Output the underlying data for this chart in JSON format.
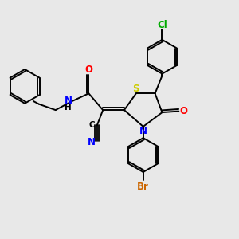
{
  "background_color": "#e8e8e8",
  "atom_colors": {
    "S": "#cccc00",
    "N": "#0000ff",
    "O": "#ff0000",
    "Cl": "#00aa00",
    "Br": "#cc6600",
    "C": "#000000",
    "H": "#555555"
  },
  "figsize": [
    3.0,
    3.0
  ],
  "dpi": 100
}
